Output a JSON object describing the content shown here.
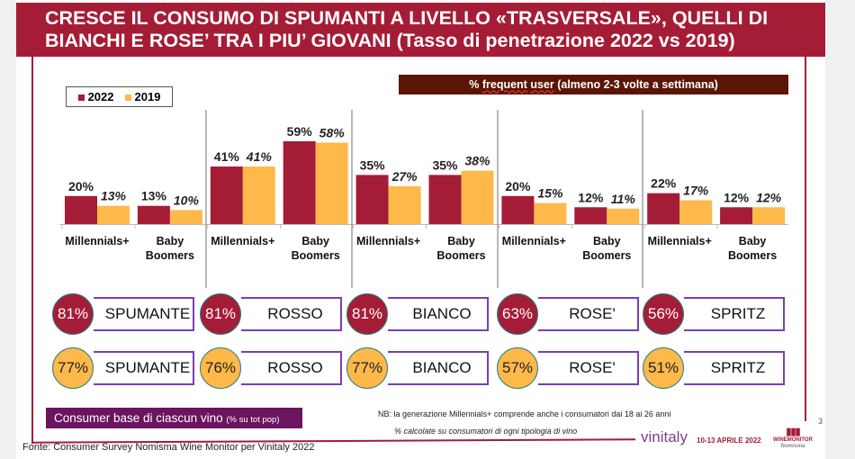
{
  "title": {
    "line1": "CRESCE IL CONSUMO DI SPUMANTI A LIVELLO «TRASVERSALE», QUELLI DI",
    "line2": "BIANCHI E ROSE’ TRA I PIU’ GIOVANI (Tasso di penetrazione 2022 vs 2019)"
  },
  "subtitle_box": {
    "prefix": "% ",
    "frequent": "frequent",
    "space": " ",
    "user": "user",
    "suffix": " (almeno 2-3 volte a settimana)"
  },
  "colors": {
    "2022": "#a51c36",
    "2019": "#ffb94a",
    "title_bg": "#a51c36",
    "consumer_base_bg": "#6b1460"
  },
  "chart_data": {
    "type": "bar",
    "legend": [
      "2022",
      "2019"
    ],
    "legend_position": "top-left",
    "groups": [
      "SPUMANTE",
      "ROSSO",
      "BIANCO",
      "ROSE'",
      "SPRITZ"
    ],
    "categories": [
      "Millennials+",
      "Baby Boomers",
      "Millennials+",
      "Baby Boomers",
      "Millennials+",
      "Baby Boomers",
      "Millennials+",
      "Baby Boomers",
      "Millennials+",
      "Baby Boomers"
    ],
    "category_lines": [
      [
        "Millennials+"
      ],
      [
        "Baby",
        "Boomers"
      ],
      [
        "Millennials+"
      ],
      [
        "Baby",
        "Boomers"
      ],
      [
        "Millennials+"
      ],
      [
        "Baby",
        "Boomers"
      ],
      [
        "Millennials+"
      ],
      [
        "Baby",
        "Boomers"
      ],
      [
        "Millennials+"
      ],
      [
        "Baby",
        "Boomers"
      ]
    ],
    "series": [
      {
        "name": "2022",
        "values": [
          20,
          13,
          41,
          59,
          35,
          35,
          20,
          12,
          22,
          12
        ]
      },
      {
        "name": "2019",
        "values": [
          13,
          10,
          41,
          58,
          27,
          38,
          15,
          11,
          17,
          12
        ]
      }
    ],
    "unit": "%",
    "grid": false
  },
  "consumer_base": {
    "2022": [
      {
        "pct": "81%",
        "wine": "SPUMANTE"
      },
      {
        "pct": "81%",
        "wine": "ROSSO"
      },
      {
        "pct": "81%",
        "wine": "BIANCO"
      },
      {
        "pct": "63%",
        "wine": "ROSE'"
      },
      {
        "pct": "56%",
        "wine": "SPRITZ"
      }
    ],
    "2019": [
      {
        "pct": "77%",
        "wine": "SPUMANTE"
      },
      {
        "pct": "76%",
        "wine": "ROSSO"
      },
      {
        "pct": "77%",
        "wine": "BIANCO"
      },
      {
        "pct": "57%",
        "wine": "ROSE'"
      },
      {
        "pct": "51%",
        "wine": "SPRITZ"
      }
    ]
  },
  "consumer_base_label": {
    "main": "Consumer base di ciascun vino ",
    "small": "(% su tot pop)"
  },
  "notes": {
    "nb": "NB: la generazione Millennials+ comprende anche i consumatori dai 18 ai 26 anni",
    "calc": "% calcolate su consumatori di ogni tipologia di vino"
  },
  "source": "Fonte: Consumer Survey Nomisma Wine Monitor per Vinitaly 2022",
  "page_number": "3",
  "logos": {
    "vinitaly": "vinitaly",
    "dates": "10-13 APRILE 2022",
    "winemonitor": "WINEMONITOR",
    "nomisma": "Nomisma"
  }
}
